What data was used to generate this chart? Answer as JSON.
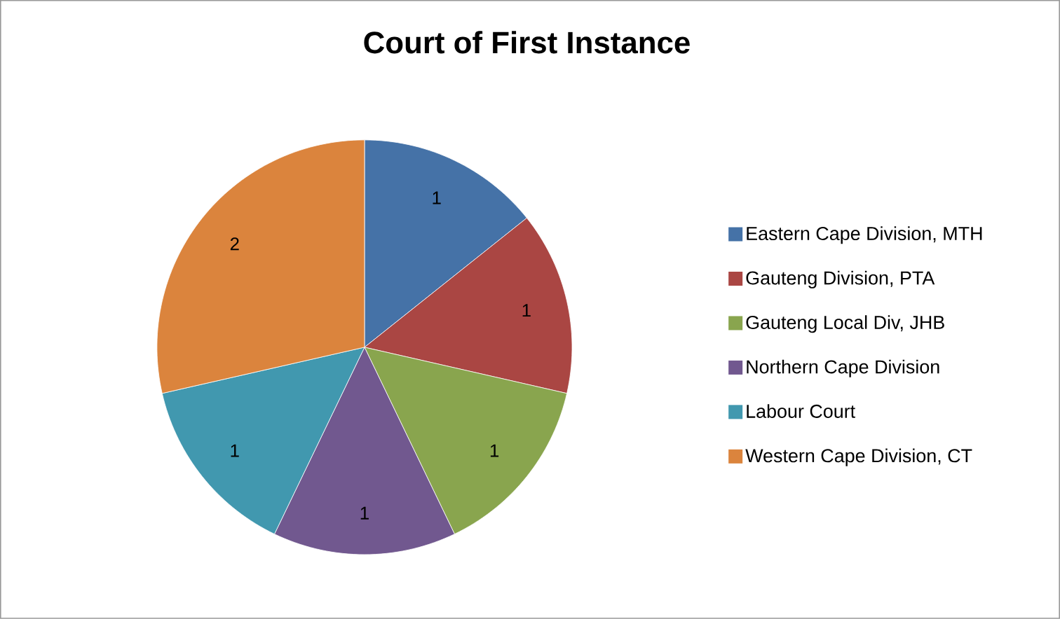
{
  "chart_data": {
    "type": "pie",
    "title": "Court of First Instance",
    "categories": [
      "Eastern Cape Division, MTH",
      "Gauteng Division, PTA",
      "Gauteng Local Div, JHB",
      "Northern Cape Division",
      "Labour Court",
      "Western Cape Division, CT"
    ],
    "values": [
      1,
      1,
      1,
      1,
      1,
      2
    ],
    "colors": [
      "#4572a7",
      "#aa4643",
      "#89a54e",
      "#71588f",
      "#4198af",
      "#db843d"
    ],
    "data_labels": true,
    "legend": "right"
  }
}
